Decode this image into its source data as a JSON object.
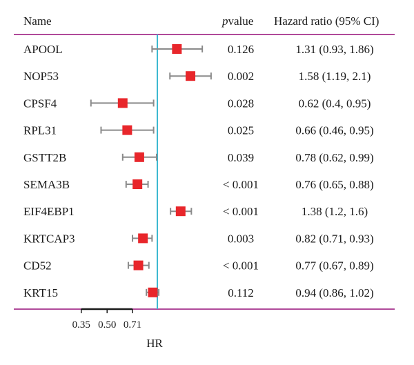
{
  "chart_data": {
    "type": "forest",
    "headers": {
      "name": "Name",
      "pvalue_italic": "p",
      "pvalue_rest": "value",
      "hr": "Hazard ratio (95% CI)"
    },
    "rows": [
      {
        "name": "APOOL",
        "hr": 1.31,
        "lo": 0.93,
        "hi": 1.86,
        "p": "0.126",
        "hr_text": "1.31 (0.93, 1.86)"
      },
      {
        "name": "NOP53",
        "hr": 1.58,
        "lo": 1.19,
        "hi": 2.1,
        "p": "0.002",
        "hr_text": "1.58 (1.19, 2.1)"
      },
      {
        "name": "CPSF4",
        "hr": 0.62,
        "lo": 0.4,
        "hi": 0.95,
        "p": "0.028",
        "hr_text": "0.62 (0.4, 0.95)"
      },
      {
        "name": "RPL31",
        "hr": 0.66,
        "lo": 0.46,
        "hi": 0.95,
        "p": "0.025",
        "hr_text": "0.66 (0.46, 0.95)"
      },
      {
        "name": "GSTT2B",
        "hr": 0.78,
        "lo": 0.62,
        "hi": 0.99,
        "p": "0.039",
        "hr_text": "0.78 (0.62, 0.99)"
      },
      {
        "name": "SEMA3B",
        "hr": 0.76,
        "lo": 0.65,
        "hi": 0.88,
        "p": "< 0.001",
        "hr_text": "0.76 (0.65, 0.88)"
      },
      {
        "name": "EIF4EBP1",
        "hr": 1.38,
        "lo": 1.2,
        "hi": 1.6,
        "p": "< 0.001",
        "hr_text": "1.38 (1.2, 1.6)"
      },
      {
        "name": "KRTCAP3",
        "hr": 0.82,
        "lo": 0.71,
        "hi": 0.93,
        "p": "0.003",
        "hr_text": "0.82 (0.71, 0.93)"
      },
      {
        "name": "CD52",
        "hr": 0.77,
        "lo": 0.67,
        "hi": 0.89,
        "p": "< 0.001",
        "hr_text": "0.77 (0.67, 0.89)"
      },
      {
        "name": "KRT15",
        "hr": 0.94,
        "lo": 0.86,
        "hi": 1.02,
        "p": "0.112",
        "hr_text": "0.94 (0.86, 1.02)"
      }
    ],
    "x_ticks": [
      0.35,
      0.5,
      0.71
    ],
    "x_tick_labels": [
      "0.35",
      "0.50",
      "0.71"
    ],
    "x_scale": "log",
    "reference_line": 1,
    "xlabel": "HR",
    "colors": {
      "marker": "#e8262b",
      "ci": "#8a8a8a",
      "reference": "#3db8d0",
      "rule": "#b04a9a"
    }
  }
}
